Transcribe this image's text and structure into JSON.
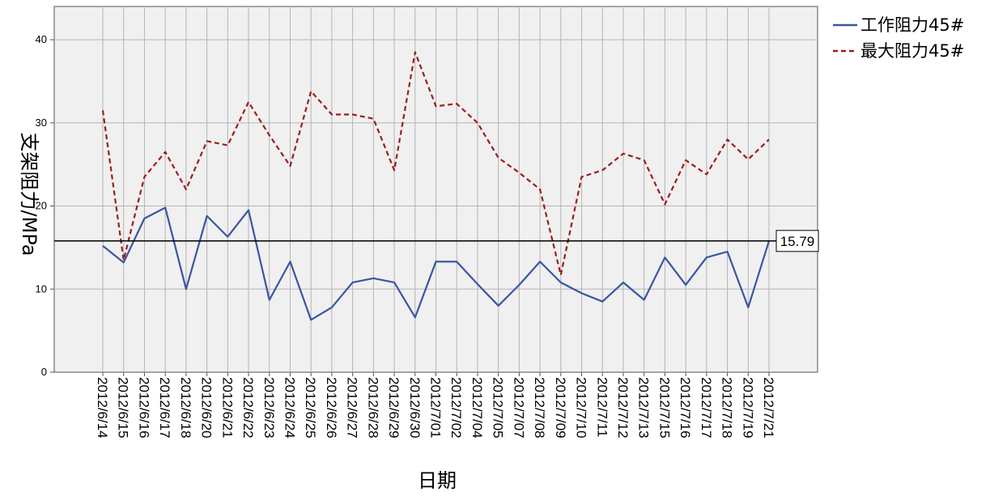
{
  "chart_data": {
    "type": "line",
    "xlabel": "日期",
    "ylabel": "支架阻力/MPa",
    "ylim": [
      0,
      44
    ],
    "yticks": [
      0,
      10,
      20,
      30,
      40
    ],
    "grid": true,
    "legend_position": "top-right",
    "categories": [
      "2012/6/14",
      "2012/6/15",
      "2012/6/16",
      "2012/6/17",
      "2012/6/18",
      "2012/6/20",
      "2012/6/21",
      "2012/6/22",
      "2012/6/23",
      "2012/6/24",
      "2012/6/25",
      "2012/6/26",
      "2012/6/27",
      "2012/6/28",
      "2012/6/29",
      "2012/6/30",
      "2012/7/01",
      "2012/7/02",
      "2012/7/04",
      "2012/7/05",
      "2012/7/07",
      "2012/7/08",
      "2012/7/09",
      "2012/7/10",
      "2012/7/11",
      "2012/7/12",
      "2012/7/13",
      "2012/7/15",
      "2012/7/16",
      "2012/7/17",
      "2012/7/18",
      "2012/7/19",
      "2012/7/21"
    ],
    "series": [
      {
        "name": "工作阻力45#",
        "color": "#3a55a4",
        "style": "solid",
        "values": [
          15.2,
          13.2,
          18.5,
          19.8,
          10.0,
          18.8,
          16.3,
          19.5,
          8.7,
          13.3,
          6.3,
          7.8,
          10.8,
          11.3,
          10.8,
          6.6,
          13.3,
          13.3,
          10.6,
          8.0,
          10.5,
          13.3,
          10.8,
          9.5,
          8.5,
          10.8,
          8.7,
          13.8,
          10.5,
          13.8,
          14.5,
          7.8,
          15.8
        ]
      },
      {
        "name": "最大阻力45#",
        "color": "#a11b1b",
        "style": "dashed",
        "values": [
          31.5,
          13.5,
          23.5,
          26.5,
          22.0,
          27.8,
          27.3,
          32.5,
          28.5,
          24.8,
          33.8,
          31.0,
          31.0,
          30.5,
          24.3,
          38.5,
          32.0,
          32.3,
          30.0,
          25.8,
          24.0,
          22.0,
          11.7,
          23.5,
          24.3,
          26.3,
          25.5,
          20.2,
          25.5,
          23.8,
          28.0,
          25.6,
          28.0
        ]
      }
    ],
    "reference_line": {
      "value": 15.79,
      "label": "15.79"
    }
  }
}
